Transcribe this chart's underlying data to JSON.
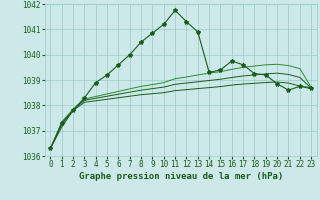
{
  "x": [
    0,
    1,
    2,
    3,
    4,
    5,
    6,
    7,
    8,
    9,
    10,
    11,
    12,
    13,
    14,
    15,
    16,
    17,
    18,
    19,
    20,
    21,
    22,
    23
  ],
  "line1": [
    1036.3,
    1037.3,
    1037.8,
    1038.3,
    1038.9,
    1039.2,
    1039.6,
    1040.0,
    1040.5,
    1040.85,
    1041.2,
    1041.75,
    1041.3,
    1040.9,
    1039.3,
    1039.4,
    1039.75,
    1039.6,
    1039.25,
    1039.2,
    1038.85,
    1038.6,
    1038.75,
    1038.7
  ],
  "line2": [
    1036.3,
    1037.35,
    1037.85,
    1038.25,
    1038.35,
    1038.45,
    1038.55,
    1038.65,
    1038.75,
    1038.82,
    1038.9,
    1039.05,
    1039.12,
    1039.2,
    1039.27,
    1039.33,
    1039.42,
    1039.5,
    1039.55,
    1039.6,
    1039.62,
    1039.57,
    1039.45,
    1038.72
  ],
  "line3": [
    1036.3,
    1037.25,
    1037.82,
    1038.2,
    1038.28,
    1038.36,
    1038.44,
    1038.52,
    1038.6,
    1038.66,
    1038.72,
    1038.83,
    1038.88,
    1038.93,
    1038.98,
    1039.03,
    1039.1,
    1039.16,
    1039.2,
    1039.24,
    1039.27,
    1039.22,
    1039.1,
    1038.68
  ],
  "line4": [
    1036.3,
    1037.15,
    1037.8,
    1038.12,
    1038.18,
    1038.24,
    1038.3,
    1038.36,
    1038.42,
    1038.46,
    1038.5,
    1038.58,
    1038.62,
    1038.66,
    1038.7,
    1038.74,
    1038.8,
    1038.84,
    1038.87,
    1038.9,
    1038.92,
    1038.88,
    1038.76,
    1038.65
  ],
  "bg_color": "#cce8e8",
  "grid_color": "#99cccc",
  "line_color_main": "#1a5c1a",
  "line_color_secondary": "#2e8b2e",
  "ylabel_min": 1036,
  "ylabel_max": 1042,
  "xlabel": "Graphe pression niveau de la mer (hPa)",
  "tick_fontsize": 5.5,
  "xlabel_fontsize": 6.5,
  "marker": "*",
  "marker_size": 3.0,
  "lw_main": 0.8,
  "lw_flat": 0.7
}
